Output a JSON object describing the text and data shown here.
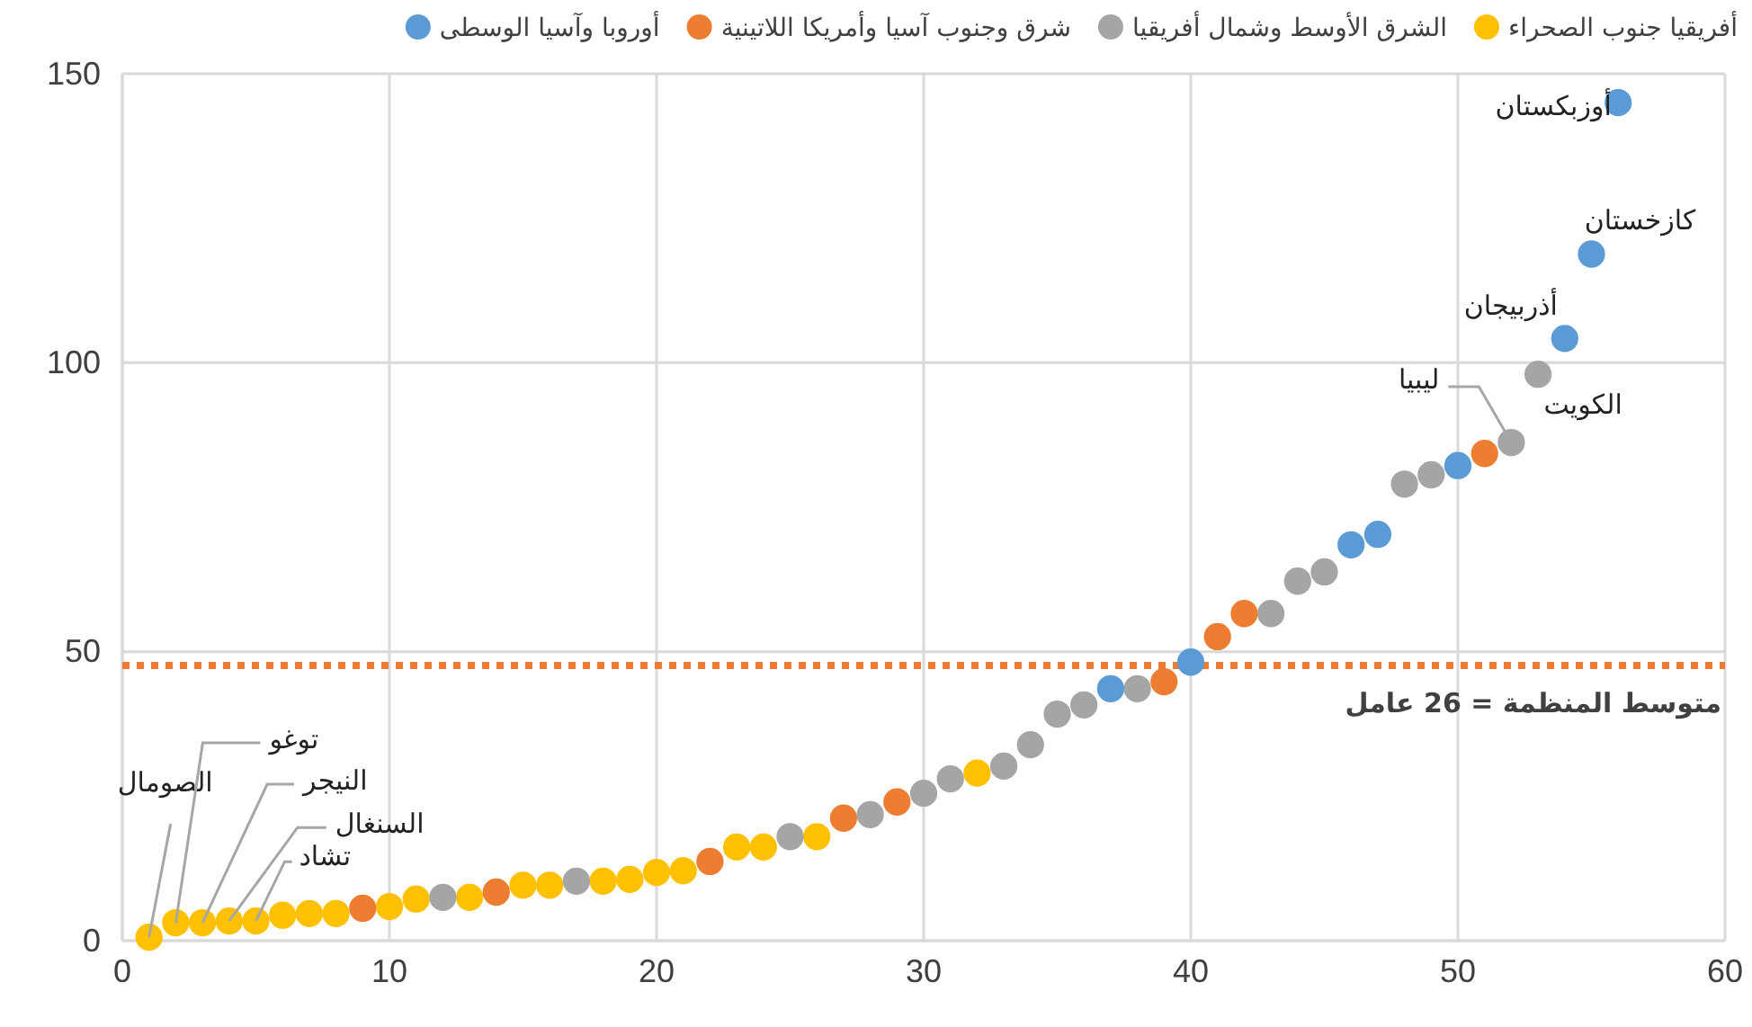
{
  "chart_data": {
    "type": "scatter",
    "xlim": [
      0,
      60
    ],
    "ylim": [
      0,
      150
    ],
    "xticks": [
      0,
      10,
      20,
      30,
      40,
      50,
      60
    ],
    "yticks": [
      0,
      50,
      100,
      150
    ],
    "grid": true,
    "legend": "top",
    "marker": "circle",
    "series": [
      {
        "name": "أفريقيا جنوب الصحراء",
        "color": "#ffc000",
        "x": [
          1,
          2,
          3,
          4,
          5,
          6,
          7,
          8,
          10,
          11,
          13,
          15,
          16,
          18,
          19,
          20,
          21,
          23,
          24,
          26,
          32
        ],
        "values": [
          0.6,
          3.1,
          3.1,
          3.4,
          3.4,
          4.4,
          4.7,
          4.7,
          5.9,
          7.2,
          7.5,
          9.6,
          9.6,
          10.3,
          10.6,
          11.8,
          12.1,
          16.2,
          16.2,
          18,
          29
        ]
      },
      {
        "name": "الشرق الأوسط وشمال أفريقيا",
        "color": "#a5a5a5",
        "x": [
          12,
          17,
          25,
          28,
          30,
          31,
          33,
          34,
          35,
          36,
          38,
          43,
          44,
          45,
          48,
          49,
          52,
          53
        ],
        "values": [
          7.5,
          10.3,
          18,
          21.8,
          25.5,
          28,
          30.2,
          33.9,
          39.2,
          40.8,
          43.6,
          56.6,
          62.2,
          63.8,
          79,
          80.6,
          86.2,
          98
        ]
      },
      {
        "name": "شرق وجنوب آسيا وأمريكا اللاتينية",
        "color": "#ed7d31",
        "x": [
          9,
          14,
          22,
          27,
          29,
          39,
          41,
          42,
          51
        ],
        "values": [
          5.6,
          8.4,
          13.7,
          21.2,
          24,
          44.8,
          52.6,
          56.6,
          84.3
        ]
      },
      {
        "name": "أوروبا وآسيا الوسطى",
        "color": "#5b9bd5",
        "x": [
          37,
          40,
          46,
          47,
          50,
          54,
          55,
          56
        ],
        "values": [
          43.6,
          48.2,
          68.5,
          70.3,
          82.2,
          104.2,
          118.8,
          145
        ]
      }
    ],
    "ref_lines": [
      {
        "axis": "y",
        "value": 47.6,
        "color": "#ed7d31",
        "line_style": "dotted"
      }
    ],
    "annotations": [
      {
        "text": "الصومال",
        "x": 1,
        "y": 0.6
      },
      {
        "text": "توغو",
        "x": 2,
        "y": 3.1
      },
      {
        "text": "النيجر",
        "x": 3,
        "y": 3.1
      },
      {
        "text": "السنغال",
        "x": 4,
        "y": 3.4
      },
      {
        "text": "تشاد",
        "x": 5,
        "y": 3.4
      },
      {
        "text": "ليبيا",
        "x": 52,
        "y": 86.2
      },
      {
        "text": "الكويت",
        "x": 53,
        "y": 98
      },
      {
        "text": "أذربيجان",
        "x": 54,
        "y": 104.2
      },
      {
        "text": "كازخستان",
        "x": 55,
        "y": 118.8
      },
      {
        "text": "أوزبكستان",
        "x": 56,
        "y": 145
      },
      "متوسط المنظمة = 26 عامل"
    ]
  }
}
